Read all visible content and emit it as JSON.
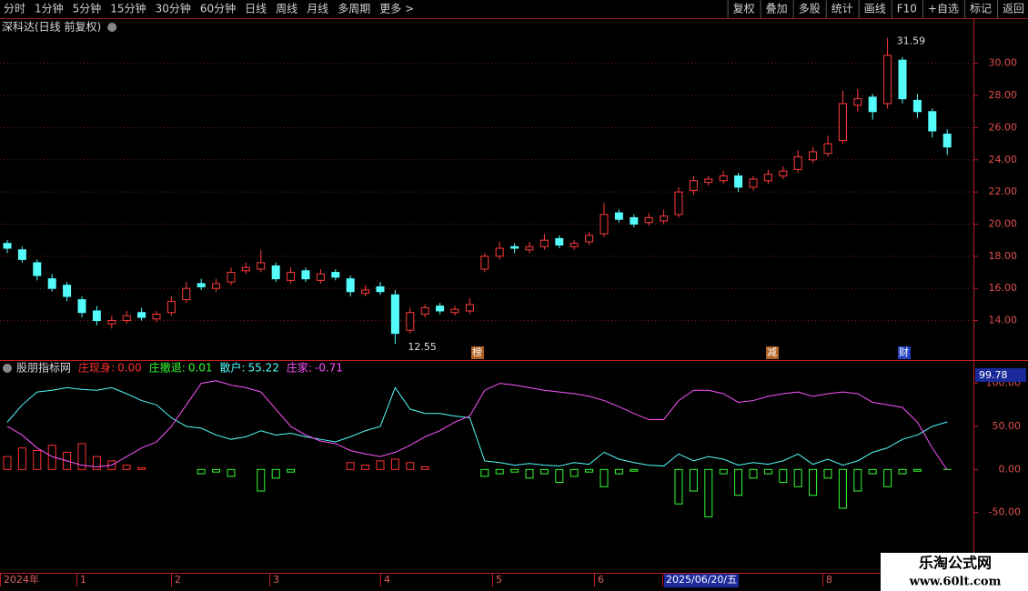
{
  "toolbar": {
    "left": [
      "分时",
      "1分钟",
      "5分钟",
      "15分钟",
      "30分钟",
      "60分钟",
      "日线",
      "周线",
      "月线",
      "多周期",
      "更多 >"
    ],
    "right": [
      "复权",
      "叠加",
      "多股",
      "统计",
      "画线",
      "F10",
      "+自选",
      "标记",
      "返回"
    ]
  },
  "chart_data": [
    {
      "type": "candlestick",
      "title": "深科达(日线 前复权)",
      "open": [
        18.8,
        18.4,
        17.6,
        16.6,
        16.2,
        15.3,
        14.6,
        13.8,
        14.0,
        14.5,
        14.1,
        14.5,
        15.3,
        16.3,
        16.0,
        16.4,
        17.1,
        17.2,
        17.4,
        16.5,
        17.1,
        16.5,
        17.0,
        16.6,
        15.7,
        16.1,
        15.6,
        13.4,
        14.4,
        14.9,
        14.5,
        14.6,
        17.2,
        18.0,
        18.6,
        18.4,
        18.6,
        19.1,
        18.6,
        18.9,
        19.4,
        20.7,
        20.4,
        20.1,
        20.2,
        20.6,
        22.1,
        22.6,
        22.7,
        23.0,
        22.3,
        22.7,
        23.0,
        23.4,
        24.0,
        24.4,
        25.2,
        27.4,
        27.9,
        27.5,
        30.2,
        27.7,
        27.0,
        25.6
      ],
      "high": [
        19.0,
        18.6,
        17.8,
        16.9,
        16.4,
        15.5,
        14.9,
        14.3,
        14.6,
        14.8,
        14.6,
        15.5,
        16.4,
        16.6,
        16.6,
        17.3,
        17.6,
        18.4,
        17.6,
        17.3,
        17.3,
        17.2,
        17.2,
        16.8,
        16.2,
        16.4,
        15.9,
        14.8,
        15.0,
        15.1,
        14.9,
        15.4,
        18.2,
        18.9,
        18.8,
        18.9,
        19.4,
        19.3,
        19.0,
        19.5,
        21.3,
        20.9,
        20.6,
        20.7,
        20.9,
        22.3,
        23.0,
        23.0,
        23.3,
        23.2,
        23.0,
        23.4,
        23.6,
        24.6,
        24.8,
        25.5,
        28.3,
        28.4,
        28.1,
        31.59,
        30.4,
        28.1,
        27.2,
        25.9
      ],
      "low": [
        18.2,
        17.6,
        16.5,
        15.8,
        15.2,
        14.2,
        13.7,
        13.5,
        13.8,
        14.0,
        13.9,
        14.3,
        15.1,
        15.9,
        15.8,
        16.2,
        16.9,
        17.0,
        16.4,
        16.3,
        16.4,
        16.3,
        16.5,
        15.5,
        15.5,
        15.6,
        12.55,
        13.2,
        14.2,
        14.4,
        14.3,
        14.4,
        17.0,
        17.8,
        18.2,
        18.2,
        18.4,
        18.5,
        18.4,
        18.7,
        19.2,
        20.1,
        19.8,
        19.9,
        20.0,
        20.4,
        21.8,
        22.4,
        22.5,
        22.0,
        22.1,
        22.5,
        22.8,
        23.2,
        23.8,
        24.2,
        25.0,
        27.0,
        26.5,
        27.2,
        27.5,
        26.6,
        25.4,
        24.3
      ],
      "close": [
        18.5,
        17.8,
        16.8,
        16.0,
        15.5,
        14.5,
        14.0,
        14.0,
        14.3,
        14.2,
        14.4,
        15.2,
        16.0,
        16.1,
        16.3,
        17.0,
        17.3,
        17.6,
        16.6,
        17.0,
        16.6,
        16.9,
        16.7,
        15.8,
        15.9,
        15.8,
        13.2,
        14.5,
        14.8,
        14.6,
        14.7,
        15.0,
        18.0,
        18.5,
        18.5,
        18.6,
        19.0,
        18.7,
        18.8,
        19.3,
        20.6,
        20.3,
        20.0,
        20.4,
        20.5,
        22.0,
        22.7,
        22.8,
        23.0,
        22.3,
        22.8,
        23.1,
        23.3,
        24.2,
        24.5,
        25.0,
        27.5,
        27.8,
        27.0,
        30.5,
        27.8,
        27.0,
        25.8,
        24.8
      ],
      "up_color": "#ff3c3c",
      "down_color": "#54fcfc",
      "ylim": [
        11.6,
        32.7
      ],
      "yticks": [
        {
          "value": 14,
          "label": "14.00"
        },
        {
          "value": 16,
          "label": "16.00"
        },
        {
          "value": 18,
          "label": "18.00"
        },
        {
          "value": 20,
          "label": "20.00"
        },
        {
          "value": 22,
          "label": "22.00"
        },
        {
          "value": 24,
          "label": "24.00"
        },
        {
          "value": 26,
          "label": "26.00"
        },
        {
          "value": 28,
          "label": "28.00"
        },
        {
          "value": 30,
          "label": "30.00"
        }
      ],
      "grid": true,
      "max_label": "31.59",
      "min_label": "12.55",
      "events": [
        "榜",
        "减",
        "财"
      ]
    },
    {
      "type": "indicator",
      "title": "股朋指标网",
      "series": [
        {
          "name": "庄现身:",
          "legend_value": "0.00",
          "color": "#ff3232",
          "style": "bar",
          "values": [
            15,
            25,
            22,
            28,
            20,
            30,
            15,
            10,
            5,
            2,
            0,
            0,
            0,
            0,
            0,
            0,
            0,
            0,
            0,
            0,
            0,
            0,
            0,
            8,
            5,
            10,
            12,
            8,
            3,
            0,
            0,
            0,
            0,
            0,
            0,
            0,
            0,
            0,
            0,
            0,
            0,
            0,
            0,
            0,
            0,
            0,
            0,
            0,
            0,
            0,
            0,
            0,
            0,
            0,
            0,
            0,
            0,
            0,
            0,
            0,
            0,
            0,
            0,
            0
          ]
        },
        {
          "name": "庄撤退:",
          "legend_value": "0.01",
          "color": "#32ff32",
          "style": "bar",
          "values": [
            0,
            0,
            0,
            0,
            0,
            0,
            0,
            0,
            0,
            0,
            0,
            0,
            0,
            -5,
            -3,
            -8,
            0,
            -25,
            -10,
            -3,
            0,
            0,
            0,
            0,
            0,
            0,
            0,
            0,
            0,
            0,
            0,
            0,
            -8,
            -5,
            -3,
            -10,
            -5,
            -15,
            -8,
            -3,
            -20,
            -5,
            -2,
            0,
            0,
            -40,
            -25,
            -55,
            -5,
            -30,
            -10,
            -5,
            -15,
            -20,
            -30,
            -10,
            -45,
            -25,
            -5,
            -20,
            -5,
            -2,
            0,
            0.01
          ]
        },
        {
          "name": "散户:",
          "legend_value": "55.22",
          "color": "#54fcfc",
          "style": "line",
          "values": [
            55,
            75,
            90,
            92,
            95,
            93,
            92,
            95,
            88,
            80,
            75,
            60,
            50,
            48,
            40,
            35,
            38,
            45,
            40,
            42,
            38,
            35,
            32,
            38,
            45,
            50,
            95,
            70,
            65,
            65,
            62,
            60,
            10,
            8,
            5,
            7,
            5,
            4,
            8,
            6,
            20,
            12,
            8,
            5,
            4,
            18,
            10,
            15,
            12,
            5,
            8,
            6,
            10,
            18,
            6,
            12,
            5,
            10,
            20,
            25,
            35,
            40,
            50,
            55.22
          ]
        },
        {
          "name": "庄家:",
          "legend_value": "-0.71",
          "color": "#ff54ff",
          "style": "line",
          "values": [
            50,
            40,
            25,
            15,
            10,
            5,
            3,
            5,
            15,
            25,
            32,
            50,
            75,
            100,
            103,
            98,
            95,
            90,
            70,
            50,
            40,
            33,
            30,
            22,
            18,
            15,
            20,
            28,
            38,
            45,
            55,
            62,
            92,
            100,
            98,
            95,
            92,
            90,
            88,
            85,
            80,
            73,
            65,
            58,
            58,
            80,
            92,
            92,
            88,
            78,
            80,
            85,
            88,
            90,
            85,
            88,
            90,
            88,
            78,
            75,
            72,
            55,
            25,
            -0.71
          ]
        }
      ],
      "ylim": [
        -120,
        126
      ],
      "yticks": [
        {
          "value": -50,
          "label": "-50.00"
        },
        {
          "value": 0,
          "label": "0.00"
        },
        {
          "value": 50,
          "label": "50.00"
        },
        {
          "value": 100,
          "label": "100.00"
        }
      ],
      "cursor_value": 99.78
    }
  ],
  "x_axis_labels": [
    "2024年",
    "1",
    "2",
    "3",
    "4",
    "5",
    "6",
    "2025/06/20/五",
    "8"
  ],
  "watermark": {
    "title": "乐淘公式网",
    "url": "www.60lt.com"
  }
}
